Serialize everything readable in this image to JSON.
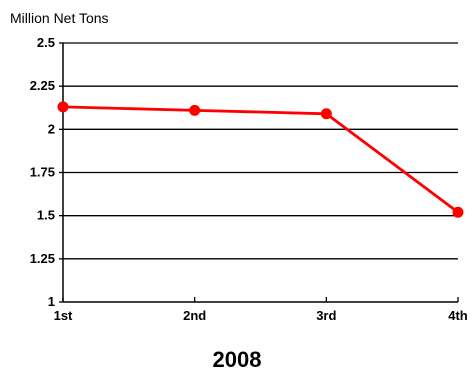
{
  "chart_data": {
    "type": "line",
    "title": "",
    "ylabel": "Million Net Tons",
    "xlabel": "2008",
    "categories": [
      "1st",
      "2nd",
      "3rd",
      "4th"
    ],
    "series": [
      {
        "values": [
          2.13,
          2.11,
          2.09,
          1.52
        ]
      }
    ],
    "ylim": [
      1,
      2.5
    ],
    "yticks": [
      1,
      1.25,
      1.5,
      1.75,
      2,
      2.25,
      2.5
    ],
    "ytick_labels": [
      "1",
      "1.25",
      "1.5",
      "1.75",
      "2",
      "2.25",
      "2.5"
    ],
    "grid": true,
    "legend": "none",
    "colors": {
      "series": "#ff0000",
      "grid": "#000000",
      "axis": "#000000",
      "text": "#000000"
    }
  }
}
